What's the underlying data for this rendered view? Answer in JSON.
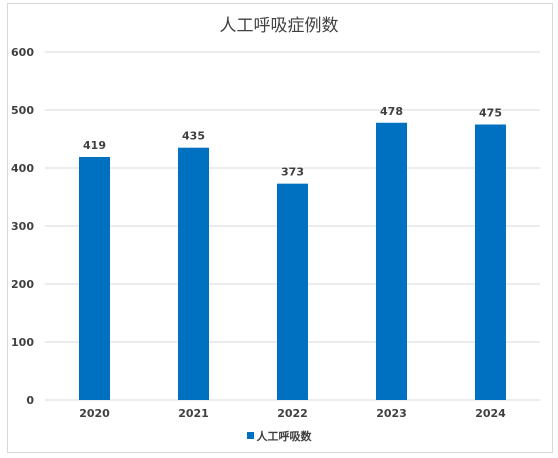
{
  "chart_data": {
    "type": "bar",
    "title": "人工呼吸症例数",
    "categories": [
      "2020",
      "2021",
      "2022",
      "2023",
      "2024"
    ],
    "series": [
      {
        "name": "人工呼吸数",
        "values": [
          419,
          435,
          373,
          478,
          475
        ],
        "color": "#0070c0"
      }
    ],
    "ylim": [
      0,
      600
    ],
    "yticks": [
      0,
      100,
      200,
      300,
      400,
      500,
      600
    ],
    "grid": true,
    "legend": "bottom",
    "data_labels": true
  }
}
